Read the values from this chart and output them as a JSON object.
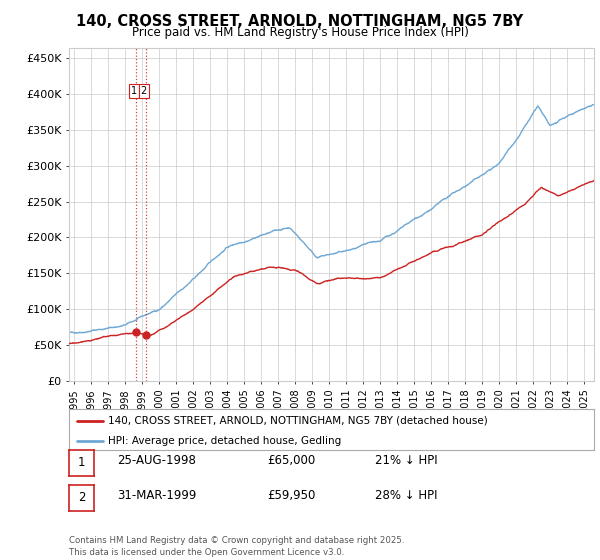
{
  "title": "140, CROSS STREET, ARNOLD, NOTTINGHAM, NG5 7BY",
  "subtitle": "Price paid vs. HM Land Registry's House Price Index (HPI)",
  "ylabel_ticks": [
    "£0",
    "£50K",
    "£100K",
    "£150K",
    "£200K",
    "£250K",
    "£300K",
    "£350K",
    "£400K",
    "£450K"
  ],
  "ytick_values": [
    0,
    50000,
    100000,
    150000,
    200000,
    250000,
    300000,
    350000,
    400000,
    450000
  ],
  "ylim": [
    0,
    465000
  ],
  "xlim_start": 1994.7,
  "xlim_end": 2025.6,
  "legend_line1": "140, CROSS STREET, ARNOLD, NOTTINGHAM, NG5 7BY (detached house)",
  "legend_line2": "HPI: Average price, detached house, Gedling",
  "line1_color": "#cc2222",
  "line2_color": "#6fa8d4",
  "annotation_note": "Contains HM Land Registry data © Crown copyright and database right 2025.\nThis data is licensed under the Open Government Licence v3.0.",
  "transactions": [
    {
      "id": 1,
      "date": 1998.65,
      "price": 65000,
      "label": "25-AUG-1998",
      "price_str": "£65,000",
      "hpi_pct": "21% ↓ HPI"
    },
    {
      "id": 2,
      "date": 1999.25,
      "price": 59950,
      "label": "31-MAR-1999",
      "price_str": "£59,950",
      "hpi_pct": "28% ↓ HPI"
    }
  ],
  "vline_color": "#cc2222",
  "background_color": "#ffffff",
  "grid_color": "#cccccc",
  "table_rows": [
    {
      "id": "1",
      "date": "25-AUG-1998",
      "price": "£65,000",
      "hpi": "21% ↓ HPI"
    },
    {
      "id": "2",
      "date": "31-MAR-1999",
      "price": "£59,950",
      "hpi": "28% ↓ HPI"
    }
  ]
}
